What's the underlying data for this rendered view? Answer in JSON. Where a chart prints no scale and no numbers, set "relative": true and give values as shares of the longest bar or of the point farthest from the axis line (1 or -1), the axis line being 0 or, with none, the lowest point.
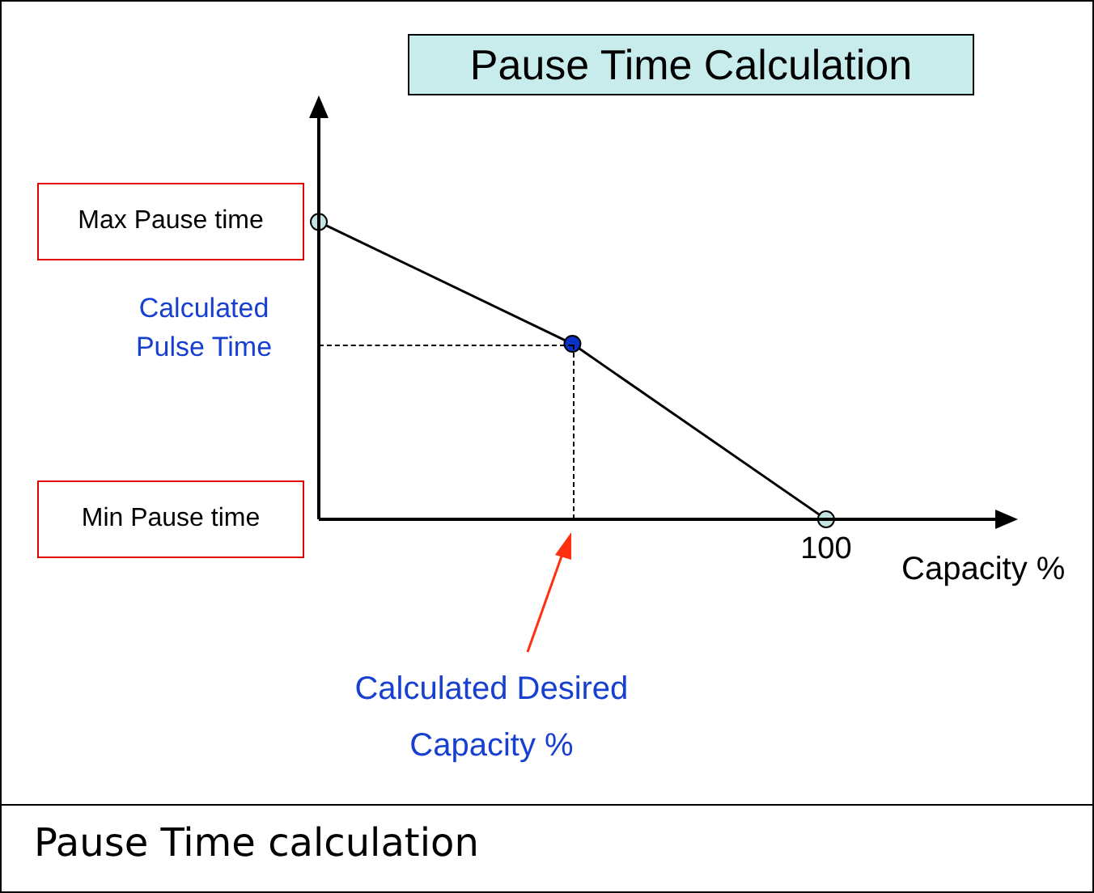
{
  "chart_data": {
    "type": "line",
    "title": "Pause Time Calculation",
    "xlabel": "Capacity %",
    "relative": true,
    "categories": [
      null,
      null,
      null
    ],
    "series": [
      {
        "color": "#000000",
        "colors": [
          "#c4e4e4",
          "#0a32c8",
          "#c4e4e4"
        ],
        "values": [
          1,
          0.59,
          0
        ]
      }
    ],
    "marker": "circle",
    "line_style": "solid",
    "legend": false,
    "annotations": [
      "Max Pause time",
      "Min Pause time",
      "Calculated Pulse Time",
      "100",
      "Calculated Desired Capacity %",
      "Pause Time calculation"
    ]
  }
}
